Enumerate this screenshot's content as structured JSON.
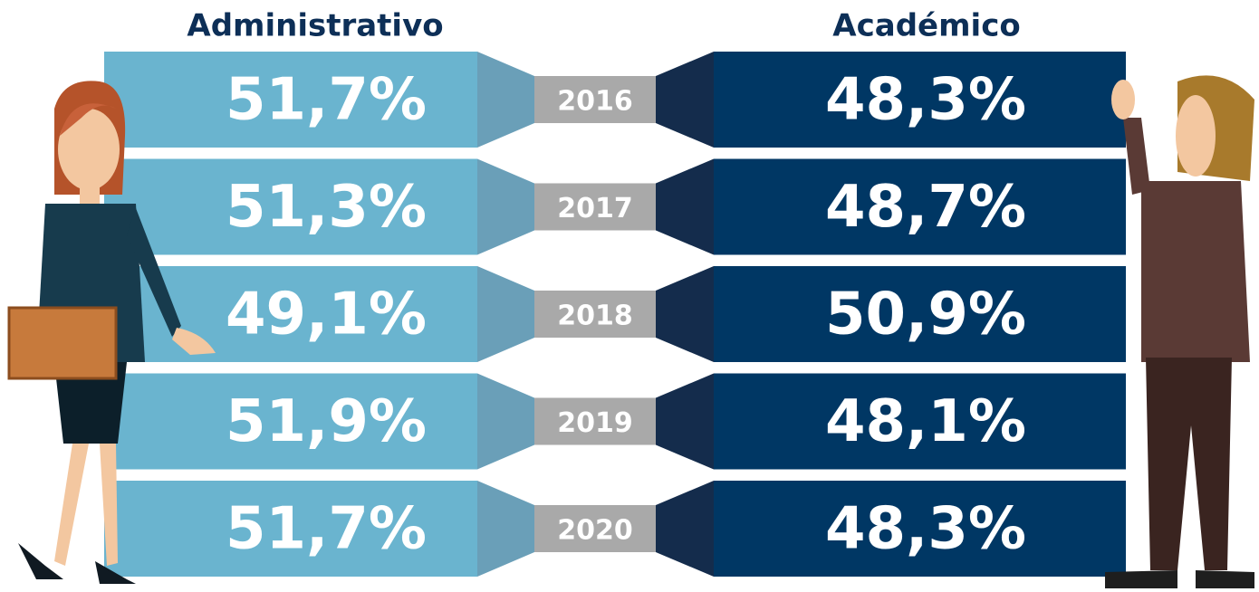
{
  "left_header": "Administrativo",
  "right_header": "Académico",
  "rows": [
    {
      "year": "2016",
      "left": "51,7%",
      "right": "48,3%"
    },
    {
      "year": "2017",
      "left": "51,3%",
      "right": "48,7%"
    },
    {
      "year": "2018",
      "left": "49,1%",
      "right": "50,9%"
    },
    {
      "year": "2019",
      "left": "51,9%",
      "right": "48,1%"
    },
    {
      "year": "2020",
      "left": "51,7%",
      "right": "48,3%"
    }
  ]
}
